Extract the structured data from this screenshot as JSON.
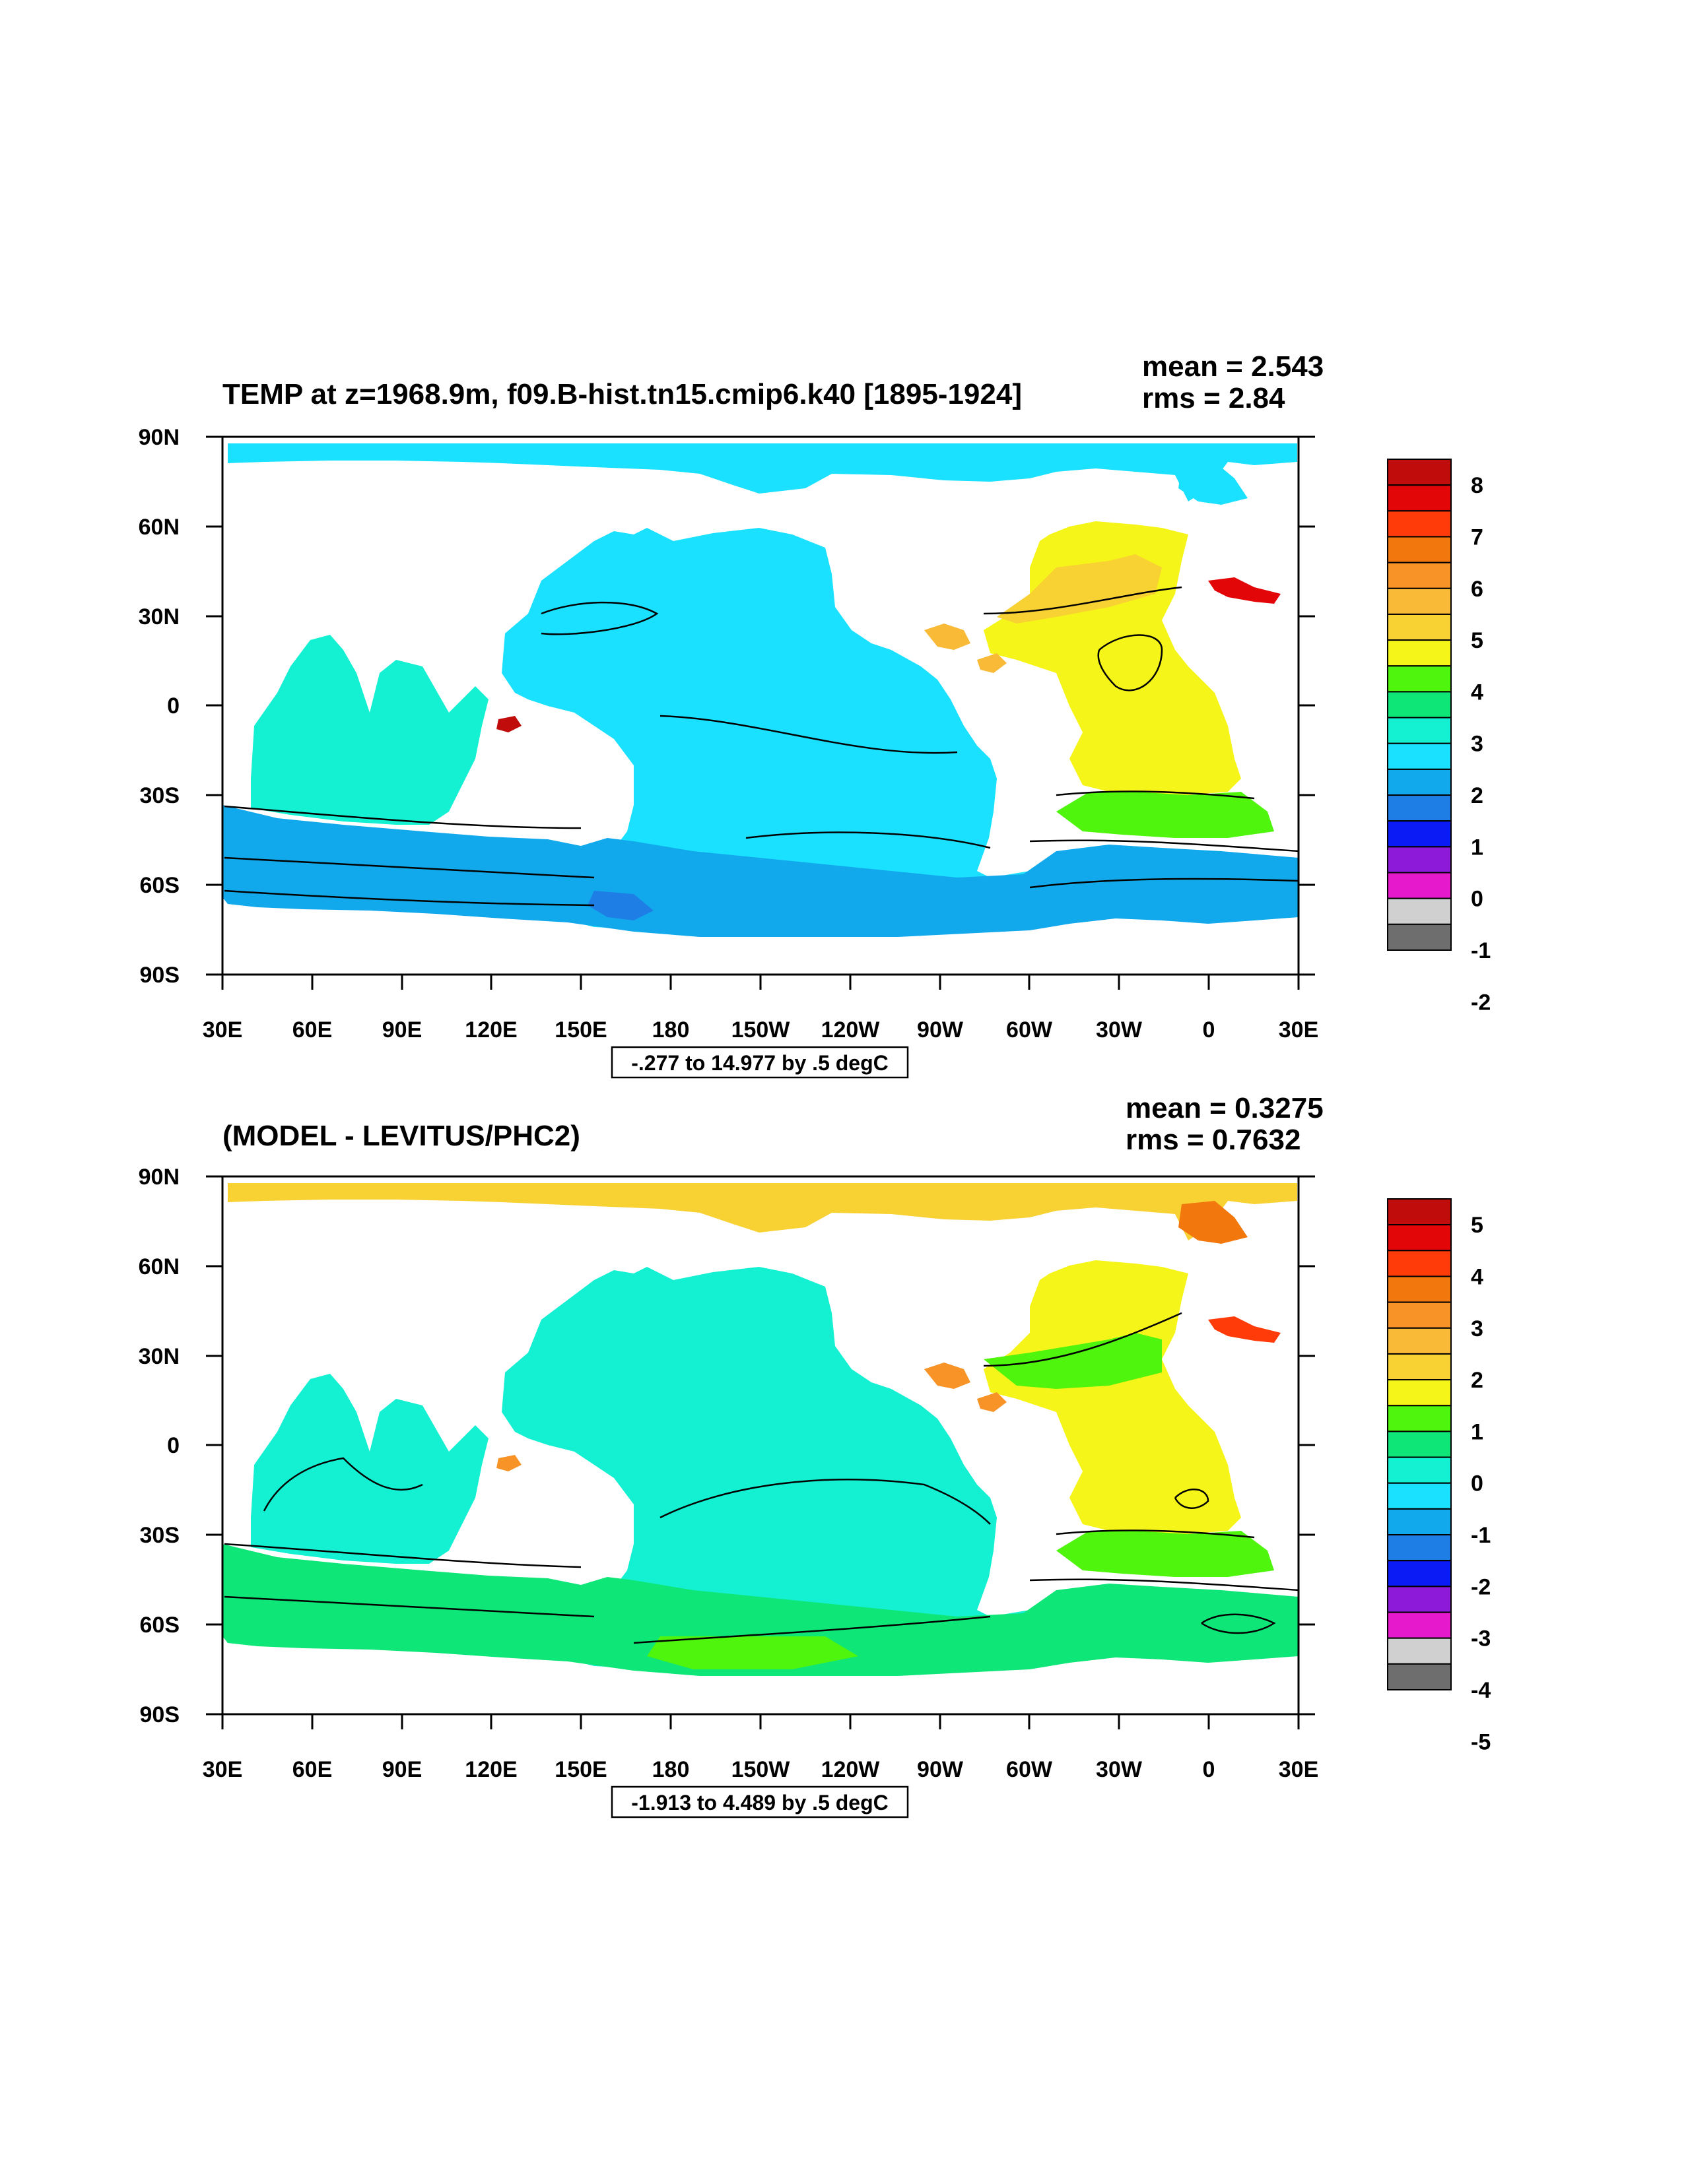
{
  "colors": {
    "palette": [
      "#6e6e6e",
      "#d0d0d0",
      "#e619cd",
      "#8d1ad8",
      "#0a1bf5",
      "#1f7ee6",
      "#12a9ec",
      "#19e1ff",
      "#13f1d2",
      "#0ee678",
      "#4ff50c",
      "#f5f519",
      "#f8d133",
      "#f8ba37",
      "#f79327",
      "#f2780e",
      "#ff3b0a",
      "#e30608",
      "#c10c0c"
    ],
    "land": "#ffffff",
    "contour": "#000000"
  },
  "panels": [
    {
      "title": "TEMP at z=1968.9m, f09.B-hist.tn15.cmip6.k40 [1895-1924]",
      "mean_text": "mean = 2.543",
      "rms_text": "rms = 2.84",
      "range_text": "-.277 to 14.977 by .5 degC",
      "lat_labels": [
        "90N",
        "60N",
        "30N",
        "0",
        "30S",
        "60S",
        "90S"
      ],
      "lon_labels": [
        "30E",
        "60E",
        "90E",
        "120E",
        "150E",
        "180",
        "150W",
        "120W",
        "90W",
        "60W",
        "30W",
        "0",
        "30E"
      ],
      "colorbar_labels": [
        "8",
        "7",
        "6",
        "5",
        "4",
        "3",
        "2",
        "1",
        "0",
        "-1",
        "-2"
      ],
      "regions": {
        "arctic": 7,
        "pacific": 7,
        "nw_pacific": 7,
        "southern": 6,
        "southern_deep": 5,
        "indian": 8,
        "atl_north": 11,
        "atl_north_core": 12,
        "atl_south": 11,
        "atl_south_band": 10,
        "mediterranean": 18,
        "gulf": 13,
        "arctic_high": 7,
        "med_red": 17
      }
    },
    {
      "title": "(MODEL - LEVITUS/PHC2)",
      "mean_text": "mean = 0.3275",
      "rms_text": "rms = 0.7632",
      "range_text": "-1.913 to 4.489 by .5 degC",
      "lat_labels": [
        "90N",
        "60N",
        "30N",
        "0",
        "30S",
        "60S",
        "90S"
      ],
      "lon_labels": [
        "30E",
        "60E",
        "90E",
        "120E",
        "150E",
        "180",
        "150W",
        "120W",
        "90W",
        "60W",
        "30W",
        "0",
        "30E"
      ],
      "colorbar_labels": [
        "5",
        "4",
        "3",
        "2",
        "1",
        "0",
        "-1",
        "-2",
        "-3",
        "-4",
        "-5"
      ],
      "regions": {
        "arctic": 12,
        "pacific": 8,
        "nw_pacific": 8,
        "southern": 9,
        "southern_deep": 10,
        "indian": 8,
        "atl_north": 11,
        "atl_north_core": 10,
        "atl_south": 11,
        "atl_south_band": 10,
        "mediterranean": 14,
        "gulf": 14,
        "arctic_high": 15,
        "med_red": 16
      }
    }
  ]
}
